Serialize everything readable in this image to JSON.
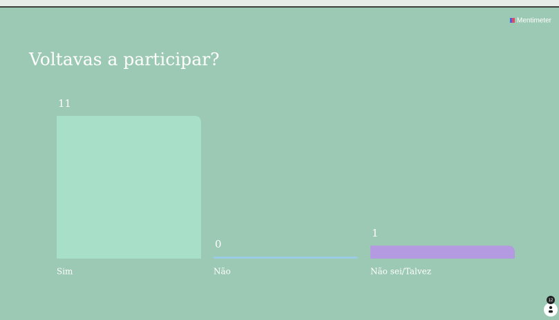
{
  "brand": "Mentimeter",
  "participants": 12,
  "chart_data": {
    "type": "bar",
    "title": "Voltavas a participar?",
    "categories": [
      "Sim",
      "Não",
      "Não sei/Talvez"
    ],
    "values": [
      11,
      0,
      1
    ],
    "colors": [
      "#a8dfc8",
      "#9ccbe6",
      "#b49ae0"
    ]
  }
}
